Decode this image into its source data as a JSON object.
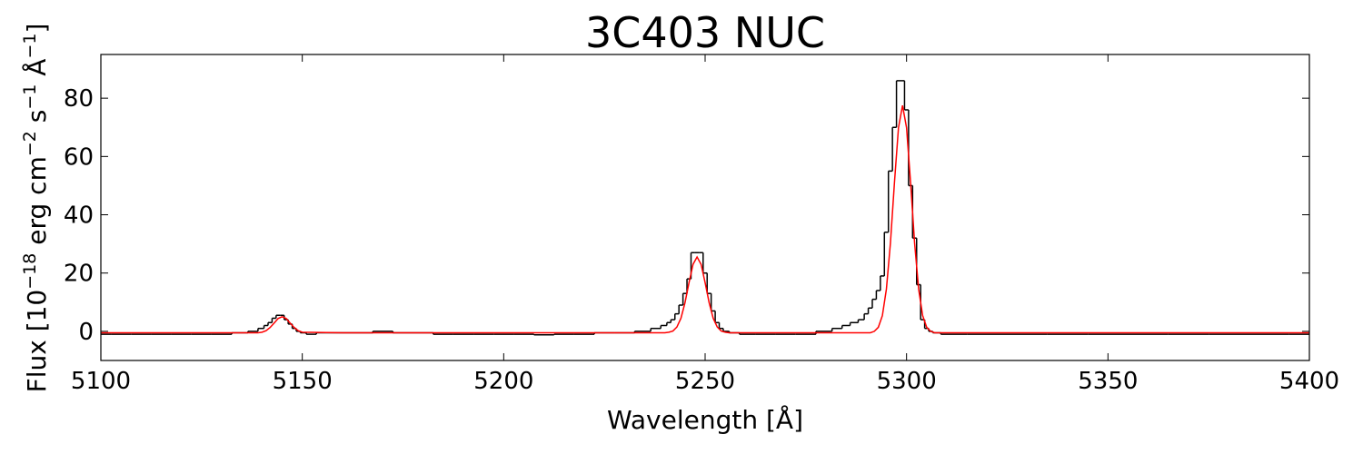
{
  "chart_data": {
    "type": "line",
    "title": "3C403 NUC",
    "xlabel": "Wavelength [Å]",
    "ylabel": [
      "Flux [10",
      "−18",
      " erg cm",
      "−2",
      " s",
      "−1",
      " Å",
      "−1",
      "]"
    ],
    "xlim": [
      5100,
      5400
    ],
    "ylim": [
      -10,
      95
    ],
    "xticks": [
      5100,
      5150,
      5200,
      5250,
      5300,
      5350,
      5400
    ],
    "yticks": [
      0,
      20,
      40,
      60,
      80
    ],
    "series": [
      {
        "color": "#000000",
        "drawstyle": "steps-mid",
        "x": [
          5100,
          5105,
          5110,
          5115,
          5120,
          5125,
          5130,
          5135,
          5138,
          5140,
          5141,
          5142,
          5143,
          5144,
          5145,
          5146,
          5147,
          5148,
          5149,
          5150,
          5152,
          5155,
          5160,
          5165,
          5170,
          5175,
          5180,
          5185,
          5190,
          5195,
          5200,
          5205,
          5210,
          5215,
          5220,
          5225,
          5230,
          5235,
          5238,
          5240,
          5241,
          5242,
          5243,
          5244,
          5245,
          5246,
          5247,
          5248,
          5249,
          5250,
          5251,
          5252,
          5253,
          5254,
          5255,
          5257,
          5260,
          5265,
          5270,
          5275,
          5280,
          5283,
          5285,
          5287,
          5289,
          5290,
          5291,
          5292,
          5293,
          5294,
          5295,
          5296,
          5297,
          5298,
          5299,
          5300,
          5301,
          5302,
          5303,
          5304,
          5305,
          5306,
          5307,
          5310,
          5320,
          5330,
          5340,
          5350,
          5360,
          5370,
          5380,
          5390,
          5400
        ],
        "values": [
          -1,
          -1,
          -1,
          -1,
          -1,
          -1,
          -1,
          -0.5,
          0,
          1,
          2,
          3,
          4.5,
          5.5,
          5.5,
          4,
          2.5,
          1,
          0,
          -0.5,
          -1,
          -0.5,
          -0.5,
          -0.5,
          0,
          -0.5,
          -0.5,
          -1,
          -1,
          -1,
          -1,
          -1,
          -1.2,
          -1,
          -1,
          -0.5,
          -0.5,
          0,
          1,
          2,
          3,
          4,
          6,
          9,
          13,
          18,
          27,
          27,
          27,
          20,
          13,
          7,
          3,
          1,
          0,
          -0.5,
          -1,
          -1,
          -1,
          -1,
          0,
          1,
          2,
          3,
          4,
          6,
          8,
          11,
          14,
          19,
          34,
          55,
          70,
          86,
          86,
          76,
          50,
          32,
          16,
          4,
          1,
          0,
          -0.5,
          -1,
          -1,
          -1,
          -1,
          -1,
          -1,
          -1,
          -1,
          -1,
          -1
        ]
      },
      {
        "color": "#ff0000",
        "x": [
          5100,
          5120,
          5139,
          5140,
          5141,
          5142,
          5143,
          5144,
          5145,
          5146,
          5147,
          5148,
          5149,
          5150,
          5160,
          5200,
          5240,
          5241,
          5242,
          5243,
          5244,
          5245,
          5246,
          5247,
          5248,
          5249,
          5250,
          5251,
          5252,
          5253,
          5254,
          5255,
          5256,
          5270,
          5291,
          5292,
          5293,
          5294,
          5295,
          5296,
          5297,
          5298,
          5299,
          5300,
          5301,
          5302,
          5303,
          5304,
          5305,
          5306,
          5307,
          5320,
          5400
        ],
        "values": [
          -0.5,
          -0.5,
          -0.5,
          -0.3,
          0.2,
          1.3,
          2.8,
          4.4,
          5.0,
          4.4,
          2.8,
          1.3,
          0.2,
          -0.3,
          -0.5,
          -0.5,
          -0.5,
          -0.3,
          0.1,
          1.5,
          4.5,
          9.8,
          16.7,
          23.0,
          25.5,
          23.0,
          16.7,
          9.8,
          4.5,
          1.5,
          0.1,
          -0.3,
          -0.5,
          -0.5,
          -0.5,
          0,
          1.4,
          5.4,
          14.5,
          30.3,
          51.1,
          69.9,
          77.5,
          69.9,
          51.1,
          30.3,
          14.5,
          5.4,
          1.4,
          0,
          -0.5,
          -0.5,
          -0.5
        ]
      }
    ]
  }
}
